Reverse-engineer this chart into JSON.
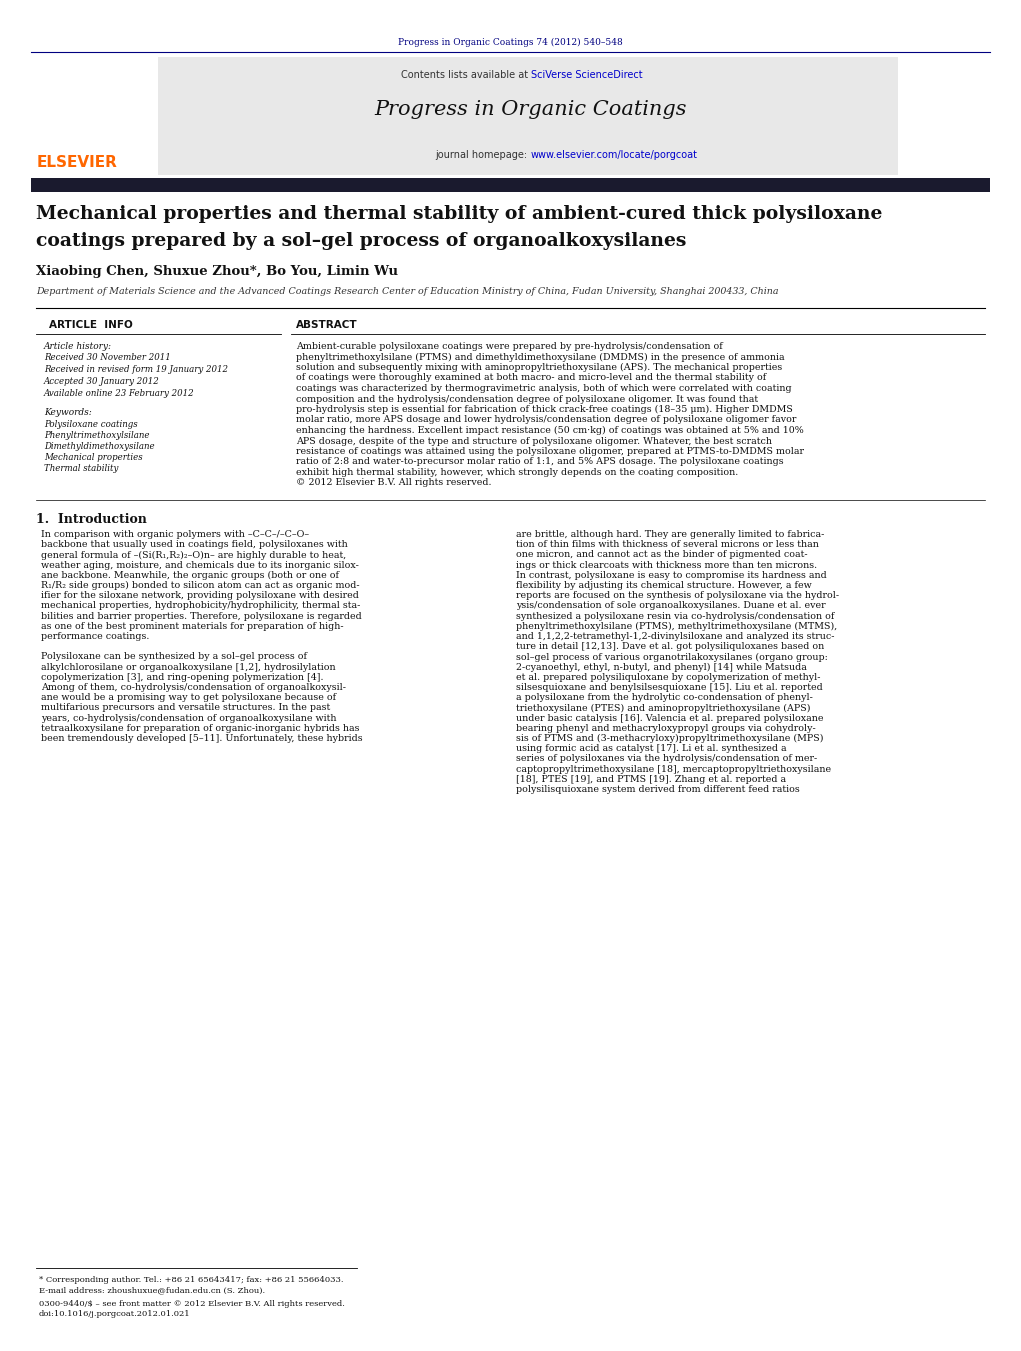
{
  "page_width": 10.21,
  "page_height": 13.51,
  "bg_color": "#ffffff",
  "header_journal_ref": "Progress in Organic Coatings 74 (2012) 540–548",
  "header_journal_color": "#000080",
  "journal_header_bg": "#e8e8e8",
  "journal_name": "Progress in Organic Coatings",
  "elsevier_color": "#ff6600",
  "sciverse_color": "#0000cc",
  "homepage_color": "#0000cc",
  "title_line1": "Mechanical properties and thermal stability of ambient-cured thick polysiloxane",
  "title_line2": "coatings prepared by a sol–gel process of organoalkoxysilanes",
  "authors": "Xiaobing Chen, Shuxue Zhou*, Bo You, Limin Wu",
  "affiliation": "Department of Materials Science and the Advanced Coatings Research Center of Education Ministry of China, Fudan University, Shanghai 200433, China",
  "article_info_label": "ARTICLE  INFO",
  "abstract_label": "ABSTRACT",
  "article_history_label": "Article history:",
  "history_items": [
    "Received 30 November 2011",
    "Received in revised form 19 January 2012",
    "Accepted 30 January 2012",
    "Available online 23 February 2012"
  ],
  "keywords_label": "Keywords:",
  "keywords": [
    "Polysiloxane coatings",
    "Phenyltrimethoxylsilane",
    "Dimethyldimethoxysilane",
    "Mechanical properties",
    "Thermal stability"
  ],
  "abstract_lines": [
    "Ambient-curable polysiloxane coatings were prepared by pre-hydrolysis/condensation of",
    "phenyltrimethoxylsilane (PTMS) and dimethyldimethoxysilane (DMDMS) in the presence of ammonia",
    "solution and subsequently mixing with aminopropyltriethoxysilane (APS). The mechanical properties",
    "of coatings were thoroughly examined at both macro- and micro-level and the thermal stability of",
    "coatings was characterized by thermogravimetric analysis, both of which were correlated with coating",
    "composition and the hydrolysis/condensation degree of polysiloxane oligomer. It was found that",
    "pro-hydrolysis step is essential for fabrication of thick crack-free coatings (18–35 μm). Higher DMDMS",
    "molar ratio, more APS dosage and lower hydrolysis/condensation degree of polysiloxane oligomer favor",
    "enhancing the hardness. Excellent impact resistance (50 cm·kg) of coatings was obtained at 5% and 10%",
    "APS dosage, despite of the type and structure of polysiloxane oligomer. Whatever, the best scratch",
    "resistance of coatings was attained using the polysiloxane oligomer, prepared at PTMS-to-DMDMS molar",
    "ratio of 2:8 and water-to-precursor molar ratio of 1:1, and 5% APS dosage. The polysiloxane coatings",
    "exhibit high thermal stability, however, which strongly depends on the coating composition.",
    "© 2012 Elsevier B.V. All rights reserved."
  ],
  "intro_heading": "1.  Introduction",
  "intro_col1_lines": [
    "In comparison with organic polymers with –C–C–/–C–O–",
    "backbone that usually used in coatings field, polysiloxanes with",
    "general formula of –(Si(R₁,R₂)₂–O)n– are highly durable to heat,",
    "weather aging, moisture, and chemicals due to its inorganic silox-",
    "ane backbone. Meanwhile, the organic groups (both or one of",
    "R₁/R₂ side groups) bonded to silicon atom can act as organic mod-",
    "ifier for the siloxane network, providing polysiloxane with desired",
    "mechanical properties, hydrophobicity/hydrophilicity, thermal sta-",
    "bilities and barrier properties. Therefore, polysiloxane is regarded",
    "as one of the best prominent materials for preparation of high-",
    "performance coatings.",
    "",
    "Polysiloxane can be synthesized by a sol–gel process of",
    "alkylchlorosilane or organoalkoxysilane [1,2], hydrosilylation",
    "copolymerization [3], and ring-opening polymerization [4].",
    "Among of them, co-hydrolysis/condensation of organoalkoxysil-",
    "ane would be a promising way to get polysiloxane because of",
    "multifarious precursors and versatile structures. In the past",
    "years, co-hydrolysis/condensation of organoalkoxysilane with",
    "tetraalkoxysilane for preparation of organic-inorganic hybrids has",
    "been tremendously developed [5–11]. Unfortunately, these hybrids"
  ],
  "intro_col2_lines": [
    "are brittle, although hard. They are generally limited to fabrica-",
    "tion of thin films with thickness of several microns or less than",
    "one micron, and cannot act as the binder of pigmented coat-",
    "ings or thick clearcoats with thickness more than ten microns.",
    "In contrast, polysiloxane is easy to compromise its hardness and",
    "flexibility by adjusting its chemical structure. However, a few",
    "reports are focused on the synthesis of polysiloxane via the hydrol-",
    "ysis/condensation of sole organoalkoxysilanes. Duane et al. ever",
    "synthesized a polysiloxane resin via co-hydrolysis/condensation of",
    "phenyltrimethoxylsilane (PTMS), methyltrimethoxysilane (MTMS),",
    "and 1,1,2,2-tetramethyl-1,2-divinylsiloxane and analyzed its struc-",
    "ture in detail [12,13]. Dave et al. got polysiliquloxanes based on",
    "sol–gel process of various organotrilakoxysilanes (organo group:",
    "2-cyanoethyl, ethyl, n-butyl, and phenyl) [14] while Matsuda",
    "et al. prepared polysiliquloxane by copolymerization of methyl-",
    "silsesquioxane and benylsilsesquioxane [15]. Liu et al. reported",
    "a polysiloxane from the hydrolytic co-condensation of phenyl-",
    "triethoxysilane (PTES) and aminopropyltriethoxysilane (APS)",
    "under basic catalysis [16]. Valencia et al. prepared polysiloxane",
    "bearing phenyl and methacryloxypropyl groups via cohydroly-",
    "sis of PTMS and (3-methacryloxy)propyltrimethoxysilane (MPS)",
    "using formic acid as catalyst [17]. Li et al. synthesized a",
    "series of polysiloxanes via the hydrolysis/condensation of mer-",
    "captopropyltrimethoxysilane [18], mercaptopropyltriethoxysilane",
    "[18], PTES [19], and PTMS [19]. Zhang et al. reported a",
    "polysilisquioxane system derived from different feed ratios"
  ],
  "footnotes": [
    "* Corresponding author. Tel.: +86 21 65643417; fax: +86 21 55664033.",
    "E-mail address: zhoushuxue@fudan.edu.cn (S. Zhou).",
    "0300-9440/$ – see front matter © 2012 Elsevier B.V. All rights reserved.",
    "doi:10.1016/j.porgcoat.2012.01.021"
  ],
  "dark_bar_color": "#1a1a2e"
}
